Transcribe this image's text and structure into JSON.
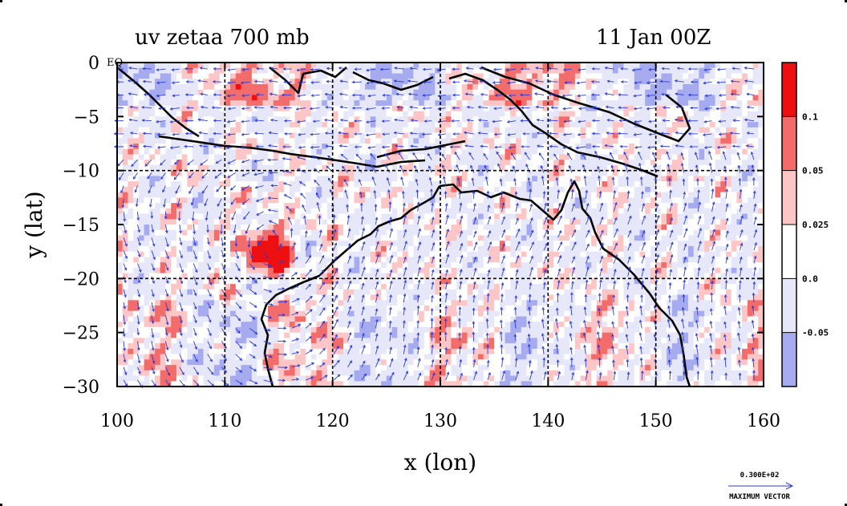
{
  "title_left": "uv zetaa 700 mb",
  "title_right": "11 Jan 00Z",
  "eq_label": "EQ",
  "chart_data": {
    "type": "heatmap",
    "title": "uv zetaa 700 mb",
    "subtitle": "11 Jan 00Z",
    "xlabel": "x (lon)",
    "ylabel": "y (lat)",
    "xlim": [
      100,
      160
    ],
    "ylim": [
      -30,
      0
    ],
    "xticks": [
      100,
      110,
      120,
      130,
      140,
      150,
      160
    ],
    "yticks": [
      0,
      -5,
      -10,
      -15,
      -20,
      -25,
      -30
    ],
    "ytick_labels": [
      "0",
      "−5",
      "−10",
      "−15",
      "−20",
      "−25",
      "−30"
    ],
    "grid": true,
    "colorbar": {
      "labels": [
        "0.1",
        "0.05",
        "0.025",
        "0.0",
        "-0.05"
      ],
      "levels": [
        -0.05,
        0.0,
        0.025,
        0.05,
        0.1
      ],
      "colors": [
        "#a6abf0",
        "#e6e8fa",
        "#ffffff",
        "#fcc6c6",
        "#f26c6c",
        "#ee1010"
      ]
    },
    "vector_reference": {
      "value": "0.300E+02",
      "label": "MAXIMUM VECTOR"
    },
    "vortex_center": {
      "lon": 114,
      "lat": -17.5
    }
  },
  "colors": {
    "strong_pos": "#ee1010",
    "mid_pos": "#f26c6c",
    "weak_pos": "#fcc6c6",
    "weak_neg": "#e6e8fa",
    "neg": "#a6abf0",
    "vectors": "#2c3ad8",
    "coast": "#000000"
  }
}
